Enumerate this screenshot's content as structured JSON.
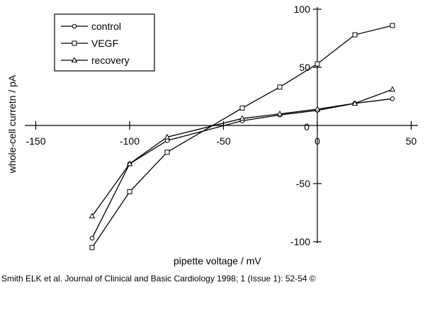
{
  "caption": "Smith ELK et al. Journal of Clinical and Basic Cardiology 1998; 1 (Issue 1): 52-54 ©",
  "chart_data": {
    "type": "line",
    "title": "",
    "xlabel": "pipette voltage / mV",
    "ylabel": "whole-cell curretn / pA",
    "xlim": [
      -150,
      50
    ],
    "ylim": [
      -100,
      100
    ],
    "xticks": [
      -150,
      -100,
      -50,
      0,
      50
    ],
    "yticks": [
      -100,
      -50,
      50,
      100
    ],
    "xtick_labels": [
      "-150",
      "-100",
      "-50",
      "0",
      "50"
    ],
    "ytick_labels": [
      "-100",
      "-50",
      "50",
      "100"
    ],
    "origin_label": "0",
    "grid": false,
    "legend_position": "top-left",
    "series": [
      {
        "name": "control",
        "marker": "circle",
        "x": [
          -120,
          -100,
          -80,
          -40,
          -20,
          0,
          20,
          40
        ],
        "y": [
          -97,
          -33,
          -13,
          4,
          9,
          13,
          19,
          23
        ]
      },
      {
        "name": "VEGF",
        "marker": "square",
        "x": [
          -120,
          -100,
          -80,
          -40,
          -20,
          0,
          20,
          40
        ],
        "y": [
          -105,
          -57,
          -23,
          15,
          33,
          53,
          78,
          86
        ]
      },
      {
        "name": "recovery",
        "marker": "triangle",
        "x": [
          -120,
          -100,
          -80,
          -40,
          -20,
          0,
          20,
          40
        ],
        "y": [
          -78,
          -33,
          -10,
          6,
          10,
          14,
          19,
          31
        ]
      }
    ]
  }
}
